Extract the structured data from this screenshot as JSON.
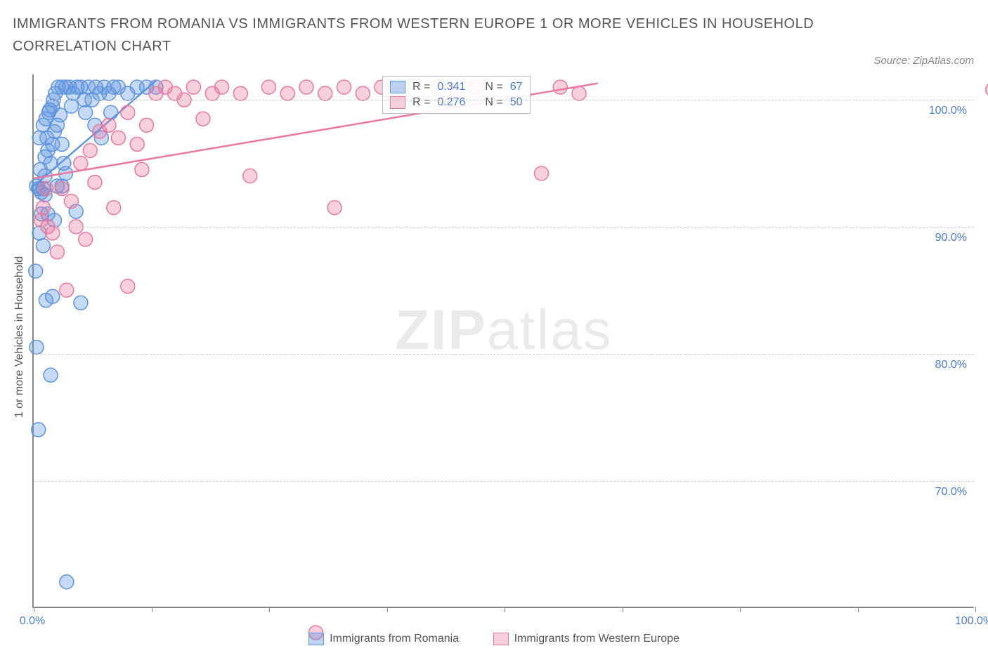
{
  "title": "IMMIGRANTS FROM ROMANIA VS IMMIGRANTS FROM WESTERN EUROPE 1 OR MORE VEHICLES IN HOUSEHOLD CORRELATION CHART",
  "source": "Source: ZipAtlas.com",
  "watermark_main": "ZIP",
  "watermark_sub": "atlas",
  "yaxis_label": "1 or more Vehicles in Household",
  "chart": {
    "type": "scatter",
    "xlim": [
      0,
      100
    ],
    "ylim": [
      60,
      102
    ],
    "y_ticks": [
      70,
      80,
      90,
      100
    ],
    "y_tick_labels": [
      "70.0%",
      "80.0%",
      "90.0%",
      "100.0%"
    ],
    "x_ticks": [
      0,
      12.5,
      25,
      37.5,
      50,
      62.5,
      75,
      87.5,
      100
    ],
    "x_tick_labels": {
      "0": "0.0%",
      "100": "100.0%"
    },
    "background_color": "#ffffff",
    "grid_color": "#cccccc",
    "axis_color": "#888888",
    "tick_label_color": "#4a7bd0",
    "marker_radius": 10,
    "marker_stroke_width": 1.5,
    "marker_fill_opacity": 0.35,
    "trend_line_width": 2.5,
    "series": [
      {
        "name": "Immigrants from Romania",
        "color": "#5e94de",
        "r": 0.341,
        "n": 67,
        "trend": {
          "x1": 0,
          "y1": 93.2,
          "x2": 13,
          "y2": 101.5
        },
        "points": [
          [
            0.3,
            93.2
          ],
          [
            0.5,
            93.0
          ],
          [
            0.8,
            92.7
          ],
          [
            1.0,
            93.0
          ],
          [
            1.2,
            94.0
          ],
          [
            1.2,
            95.5
          ],
          [
            1.4,
            97.0
          ],
          [
            0.6,
            97.0
          ],
          [
            1.0,
            98.0
          ],
          [
            1.3,
            98.5
          ],
          [
            1.6,
            99.0
          ],
          [
            2.0,
            99.5
          ],
          [
            2.3,
            100.5
          ],
          [
            2.6,
            101.0
          ],
          [
            3.0,
            101.0
          ],
          [
            3.4,
            101.0
          ],
          [
            3.8,
            101.0
          ],
          [
            4.2,
            100.5
          ],
          [
            4.6,
            101.0
          ],
          [
            5.0,
            101.0
          ],
          [
            5.4,
            100.0
          ],
          [
            5.8,
            101.0
          ],
          [
            6.2,
            100.0
          ],
          [
            6.6,
            101.0
          ],
          [
            7.0,
            100.5
          ],
          [
            7.5,
            101.0
          ],
          [
            8.0,
            100.5
          ],
          [
            8.5,
            101.0
          ],
          [
            9.0,
            101.0
          ],
          [
            10.0,
            100.5
          ],
          [
            11.0,
            101.0
          ],
          [
            12.0,
            101.0
          ],
          [
            13.0,
            101.0
          ],
          [
            1.5,
            96.0
          ],
          [
            1.8,
            95.0
          ],
          [
            2.0,
            96.5
          ],
          [
            2.2,
            97.5
          ],
          [
            2.5,
            98.0
          ],
          [
            2.8,
            98.8
          ],
          [
            3.0,
            96.5
          ],
          [
            3.2,
            95.0
          ],
          [
            3.4,
            94.2
          ],
          [
            3.0,
            93.2
          ],
          [
            0.8,
            91.0
          ],
          [
            1.5,
            91.0
          ],
          [
            2.2,
            90.5
          ],
          [
            0.6,
            89.5
          ],
          [
            1.0,
            88.5
          ],
          [
            4.5,
            91.2
          ],
          [
            0.2,
            86.5
          ],
          [
            1.3,
            84.2
          ],
          [
            2.0,
            84.5
          ],
          [
            5.0,
            84.0
          ],
          [
            0.3,
            80.5
          ],
          [
            1.8,
            78.3
          ],
          [
            0.5,
            74.0
          ],
          [
            3.5,
            62.0
          ],
          [
            2.5,
            93.2
          ],
          [
            1.2,
            92.5
          ],
          [
            0.7,
            94.5
          ],
          [
            1.7,
            99.2
          ],
          [
            2.1,
            100.0
          ],
          [
            4.0,
            99.5
          ],
          [
            5.5,
            99.0
          ],
          [
            6.5,
            98.0
          ],
          [
            7.2,
            97.0
          ],
          [
            8.2,
            99.0
          ]
        ]
      },
      {
        "name": "Immigrants from Western Europe",
        "color": "#e878a0",
        "r": 0.276,
        "n": 50,
        "trend": {
          "x1": 0,
          "y1": 93.8,
          "x2": 60,
          "y2": 101.3
        },
        "points": [
          [
            1.0,
            91.5
          ],
          [
            2.0,
            89.5
          ],
          [
            3.0,
            93.0
          ],
          [
            4.0,
            92.0
          ],
          [
            5.0,
            95.0
          ],
          [
            6.0,
            96.0
          ],
          [
            7.0,
            97.5
          ],
          [
            8.0,
            98.0
          ],
          [
            9.0,
            97.0
          ],
          [
            10.0,
            99.0
          ],
          [
            11.0,
            96.5
          ],
          [
            12.0,
            98.0
          ],
          [
            13.0,
            100.5
          ],
          [
            14.0,
            101.0
          ],
          [
            15.0,
            100.5
          ],
          [
            16.0,
            100.0
          ],
          [
            17.0,
            101.0
          ],
          [
            19.0,
            100.5
          ],
          [
            20.0,
            101.0
          ],
          [
            22.0,
            100.5
          ],
          [
            23.0,
            94.0
          ],
          [
            25.0,
            101.0
          ],
          [
            27.0,
            100.5
          ],
          [
            29.0,
            101.0
          ],
          [
            30.0,
            58.0
          ],
          [
            31.0,
            100.5
          ],
          [
            32.0,
            91.5
          ],
          [
            33.0,
            101.0
          ],
          [
            35.0,
            100.5
          ],
          [
            37.0,
            101.0
          ],
          [
            39.0,
            100.5
          ],
          [
            43.0,
            101.0
          ],
          [
            45.0,
            100.5
          ],
          [
            47.0,
            101.0
          ],
          [
            54.0,
            94.2
          ],
          [
            56.0,
            101.0
          ],
          [
            58.0,
            100.5
          ],
          [
            102.0,
            100.8
          ],
          [
            1.5,
            90.0
          ],
          [
            3.5,
            85.0
          ],
          [
            10.0,
            85.3
          ],
          [
            8.5,
            91.5
          ],
          [
            6.5,
            93.5
          ],
          [
            4.5,
            90.0
          ],
          [
            2.5,
            88.0
          ],
          [
            0.8,
            90.5
          ],
          [
            1.3,
            93.0
          ],
          [
            11.5,
            94.5
          ],
          [
            5.5,
            89.0
          ],
          [
            18.0,
            98.5
          ]
        ]
      }
    ]
  },
  "legend_top": {
    "r_label": "R =",
    "n_label": "N ="
  },
  "legend_bottom": [
    {
      "color": "blue",
      "label": "Immigrants from Romania"
    },
    {
      "color": "pink",
      "label": "Immigrants from Western Europe"
    }
  ]
}
